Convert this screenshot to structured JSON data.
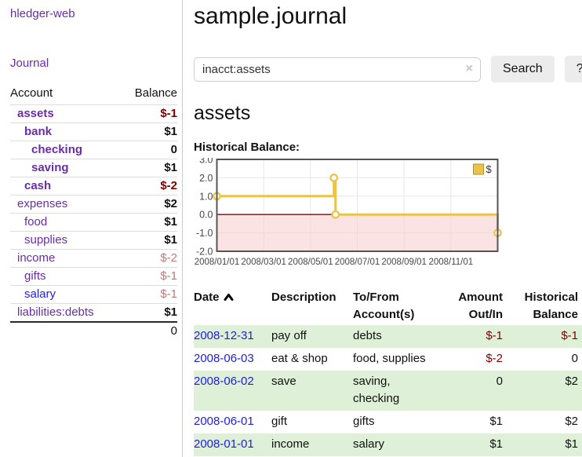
{
  "app": {
    "brand": "hledger-web"
  },
  "nav": {
    "journal": "Journal"
  },
  "colors": {
    "accent_purple": "#6a2da6",
    "link_blue": "#2323d8",
    "negative_strong": "#7f0000",
    "negative_muted": "#c17979",
    "row_stripe_green": "#dff0d8",
    "chart_line": "#e9c34a",
    "chart_negative_fill": "#f8d0d0",
    "chart_zero_line": "#8b0000"
  },
  "sidebar": {
    "col_account": "Account",
    "col_balance": "Balance",
    "accounts": [
      {
        "name": "assets",
        "indent": 1,
        "balance": "$-1",
        "bold": true,
        "neg": "strong"
      },
      {
        "name": "bank",
        "indent": 2,
        "balance": "$1",
        "bold": true
      },
      {
        "name": "checking",
        "indent": 3,
        "balance": "0",
        "bold": true
      },
      {
        "name": "saving",
        "indent": 3,
        "balance": "$1",
        "bold": true
      },
      {
        "name": "cash",
        "indent": 2,
        "balance": "$-2",
        "bold": true,
        "neg": "strong"
      },
      {
        "name": "expenses",
        "indent": 1,
        "balance": "$2"
      },
      {
        "name": "food",
        "indent": 2,
        "balance": "$1"
      },
      {
        "name": "supplies",
        "indent": 2,
        "balance": "$1"
      },
      {
        "name": "income",
        "indent": 1,
        "balance": "$-2",
        "neg": "muted"
      },
      {
        "name": "gifts",
        "indent": 2,
        "balance": "$-1",
        "neg": "muted"
      },
      {
        "name": "salary",
        "indent": 2,
        "balance": "$-1",
        "neg": "muted",
        "blue": true
      },
      {
        "name": "liabilities:debts",
        "indent": 1,
        "balance": "$1"
      }
    ],
    "total": "0"
  },
  "header": {
    "title": "sample.journal"
  },
  "search": {
    "value": "inacct:assets",
    "clear_icon": "×",
    "button_label": "Search",
    "help_label": "?"
  },
  "account_page": {
    "heading": "assets",
    "chart_label": "Historical Balance:"
  },
  "chart_data": {
    "type": "line",
    "title": "Historical Balance",
    "legend": "$",
    "legend_position": "top-right",
    "grid": true,
    "x_unit": "months since 2008-01-01",
    "xlim": [
      0,
      12
    ],
    "ylim": [
      -2,
      3
    ],
    "yticks": [
      3.0,
      2.0,
      1.0,
      0.0,
      -1.0,
      -2.0
    ],
    "ytick_labels": [
      "3.0",
      "2.0",
      "1.0",
      "0.0",
      "-1.0",
      "-2.0"
    ],
    "xticks": [
      0,
      2,
      4,
      6,
      8,
      10
    ],
    "xtick_labels": [
      "2008/01/01",
      "2008/03/01",
      "2008/05/01",
      "2008/07/01",
      "2008/09/01",
      "2008/11/01"
    ],
    "series": [
      {
        "name": "$",
        "color": "#e9c34a",
        "marker_fill": "#ffffff",
        "dates": [
          "2008-01-01",
          "2008-06-01",
          "2008-06-02",
          "2008-06-03",
          "2008-12-31"
        ],
        "values": [
          1,
          2,
          2,
          0,
          -1
        ],
        "step_path": [
          [
            0,
            1
          ],
          [
            5,
            1
          ],
          [
            5,
            2
          ],
          [
            5.07,
            2
          ],
          [
            5.07,
            0
          ],
          [
            12,
            0
          ],
          [
            12,
            -1
          ]
        ],
        "markers": [
          [
            0,
            1
          ],
          [
            5,
            2
          ],
          [
            5.07,
            0
          ],
          [
            12,
            -1
          ]
        ]
      }
    ],
    "negative_region_fill": "#f8d0d0",
    "zero_line_color": "#8b0000",
    "plot_border_color": "#545454",
    "grid_color": "#e7e7e7"
  },
  "register": {
    "columns": [
      {
        "line1": "Date",
        "sort": "asc"
      },
      {
        "line1": "Description"
      },
      {
        "line1": "To/From",
        "line2": "Account(s)"
      },
      {
        "line1": "Amount",
        "line2": "Out/In"
      },
      {
        "line1": "Historical",
        "line2": "Balance"
      }
    ],
    "rows": [
      {
        "date": "2008-12-31",
        "description": "pay off",
        "accounts": "debts",
        "amount": "$-1",
        "amount_negative": true,
        "balance": "$-1",
        "balance_negative": true
      },
      {
        "date": "2008-06-03",
        "description": "eat & shop",
        "accounts": "food, supplies",
        "amount": "$-2",
        "amount_negative": true,
        "balance": "0",
        "balance_negative": false
      },
      {
        "date": "2008-06-02",
        "description": "save",
        "accounts": "saving,\nchecking",
        "amount": "0",
        "amount_negative": false,
        "balance": "$2",
        "balance_negative": false
      },
      {
        "date": "2008-06-01",
        "description": "gift",
        "accounts": "gifts",
        "amount": "$1",
        "amount_negative": false,
        "balance": "$2",
        "balance_negative": false
      },
      {
        "date": "2008-01-01",
        "description": "income",
        "accounts": "salary",
        "amount": "$1",
        "amount_negative": false,
        "balance": "$1",
        "balance_negative": false
      }
    ]
  }
}
